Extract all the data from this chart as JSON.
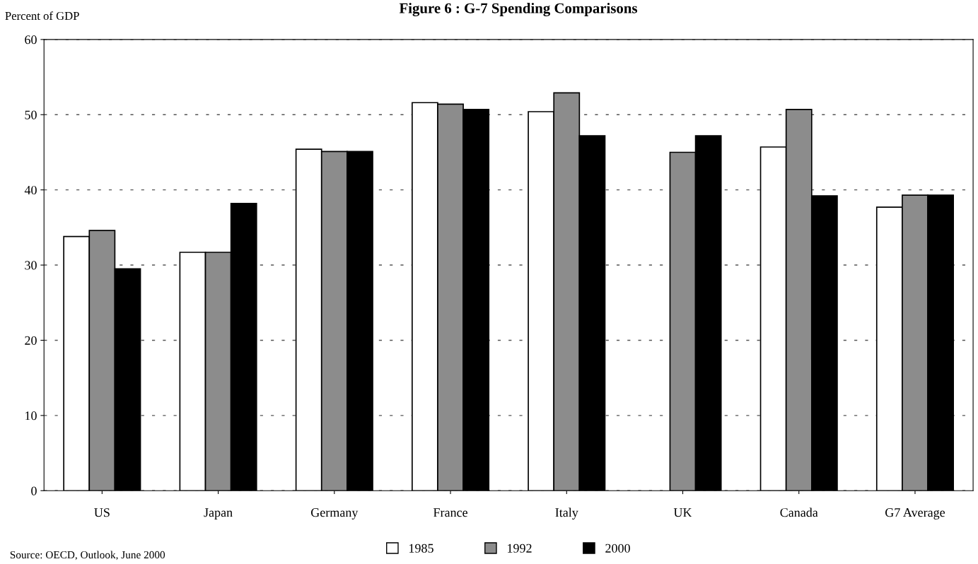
{
  "chart_data": {
    "type": "bar",
    "title": "Figure 6 : G-7 Spending Comparisons",
    "ylabel": "Percent of GDP",
    "categories": [
      "US",
      "Japan",
      "Germany",
      "France",
      "Italy",
      "UK",
      "Canada",
      "G7 Average"
    ],
    "series": [
      {
        "name": "1985",
        "color": "#ffffff",
        "values": [
          33.8,
          31.7,
          45.4,
          51.6,
          50.4,
          null,
          45.7,
          37.7
        ]
      },
      {
        "name": "1992",
        "color": "#8c8c8c",
        "values": [
          34.6,
          31.7,
          45.1,
          51.4,
          52.9,
          45.0,
          50.7,
          39.3
        ]
      },
      {
        "name": "2000",
        "color": "#000000",
        "values": [
          29.5,
          38.2,
          45.1,
          50.7,
          47.2,
          47.2,
          39.2,
          39.3
        ]
      }
    ],
    "ylim": [
      0,
      60
    ],
    "yticks": [
      0,
      10,
      20,
      30,
      40,
      50,
      60
    ],
    "grid": "y",
    "legend": "bottom",
    "annotations": [
      "Source: OECD, Outlook, June 2000"
    ]
  }
}
